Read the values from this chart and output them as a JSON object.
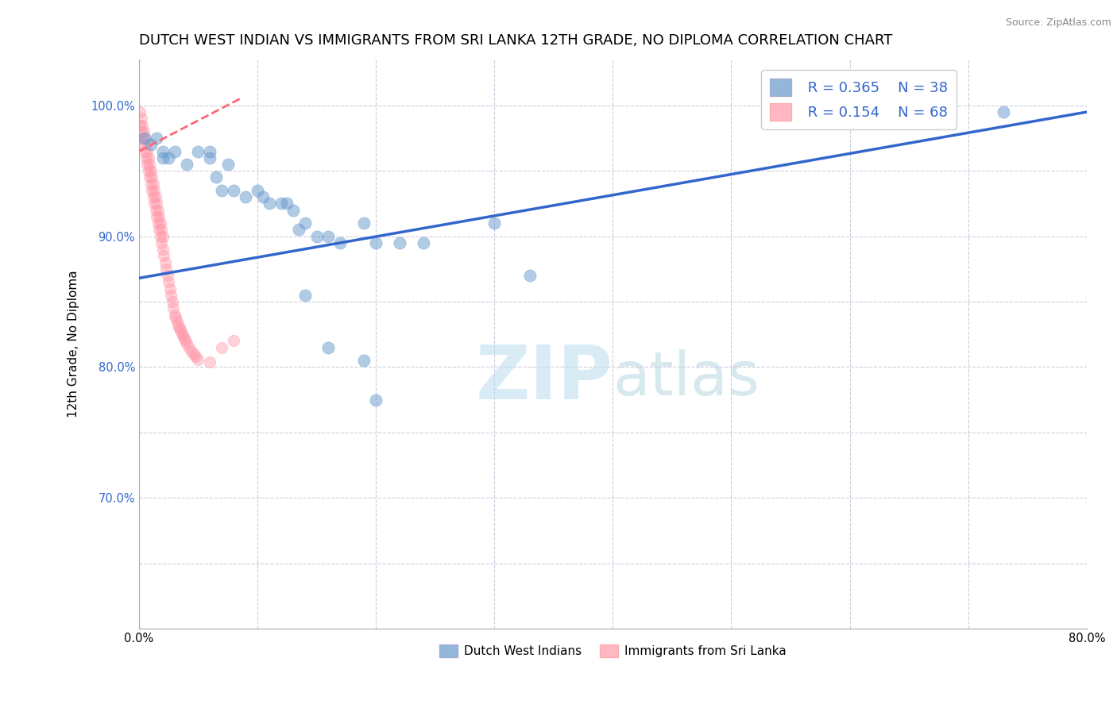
{
  "title": "DUTCH WEST INDIAN VS IMMIGRANTS FROM SRI LANKA 12TH GRADE, NO DIPLOMA CORRELATION CHART",
  "source_text": "Source: ZipAtlas.com",
  "ylabel": "12th Grade, No Diploma",
  "xlim": [
    0.0,
    0.8
  ],
  "ylim": [
    0.6,
    1.035
  ],
  "xticks": [
    0.0,
    0.1,
    0.2,
    0.3,
    0.4,
    0.5,
    0.6,
    0.7,
    0.8
  ],
  "xtick_labels": [
    "0.0%",
    "",
    "",
    "",
    "",
    "",
    "",
    "",
    "80.0%"
  ],
  "yticks": [
    0.6,
    0.65,
    0.7,
    0.75,
    0.8,
    0.85,
    0.9,
    0.95,
    1.0
  ],
  "ytick_labels": [
    "",
    "",
    "70.0%",
    "",
    "80.0%",
    "",
    "90.0%",
    "",
    "100.0%"
  ],
  "blue_color": "#6699CC",
  "pink_color": "#FF99AA",
  "blue_line_color": "#3366CC",
  "pink_line_color": "#FF6677",
  "legend_R1": "R = 0.365",
  "legend_N1": "N = 38",
  "legend_R2": "R = 0.154",
  "legend_N2": "N = 68",
  "watermark_zip": "ZIP",
  "watermark_atlas": "atlas",
  "watermark_color_zip": "#BBDDEE",
  "watermark_color_atlas": "#AACCDD",
  "blue_scatter_x": [
    0.005,
    0.01,
    0.015,
    0.02,
    0.02,
    0.025,
    0.03,
    0.04,
    0.05,
    0.06,
    0.06,
    0.065,
    0.07,
    0.075,
    0.08,
    0.09,
    0.1,
    0.105,
    0.11,
    0.12,
    0.125,
    0.13,
    0.135,
    0.14,
    0.15,
    0.16,
    0.17,
    0.19,
    0.2,
    0.22,
    0.14,
    0.24,
    0.3,
    0.33,
    0.16,
    0.19,
    0.73,
    0.2
  ],
  "blue_scatter_y": [
    0.975,
    0.97,
    0.975,
    0.96,
    0.965,
    0.96,
    0.965,
    0.955,
    0.965,
    0.965,
    0.96,
    0.945,
    0.935,
    0.955,
    0.935,
    0.93,
    0.935,
    0.93,
    0.925,
    0.925,
    0.925,
    0.92,
    0.905,
    0.91,
    0.9,
    0.9,
    0.895,
    0.91,
    0.895,
    0.895,
    0.855,
    0.895,
    0.91,
    0.87,
    0.815,
    0.805,
    0.995,
    0.775
  ],
  "pink_scatter_x": [
    0.001,
    0.001,
    0.002,
    0.002,
    0.003,
    0.003,
    0.004,
    0.004,
    0.005,
    0.005,
    0.006,
    0.006,
    0.007,
    0.007,
    0.008,
    0.008,
    0.009,
    0.009,
    0.01,
    0.01,
    0.011,
    0.011,
    0.012,
    0.012,
    0.013,
    0.013,
    0.014,
    0.014,
    0.015,
    0.015,
    0.016,
    0.016,
    0.017,
    0.017,
    0.018,
    0.018,
    0.019,
    0.019,
    0.02,
    0.02,
    0.021,
    0.022,
    0.023,
    0.024,
    0.025,
    0.026,
    0.027,
    0.028,
    0.029,
    0.03,
    0.031,
    0.032,
    0.033,
    0.034,
    0.035,
    0.036,
    0.037,
    0.038,
    0.039,
    0.04,
    0.042,
    0.044,
    0.046,
    0.048,
    0.05,
    0.06,
    0.07,
    0.08
  ],
  "pink_scatter_y": [
    0.995,
    0.985,
    0.99,
    0.98,
    0.985,
    0.975,
    0.98,
    0.97,
    0.975,
    0.965,
    0.97,
    0.96,
    0.965,
    0.955,
    0.96,
    0.95,
    0.955,
    0.945,
    0.95,
    0.94,
    0.945,
    0.935,
    0.94,
    0.93,
    0.935,
    0.925,
    0.93,
    0.92,
    0.925,
    0.915,
    0.92,
    0.91,
    0.915,
    0.905,
    0.91,
    0.9,
    0.905,
    0.895,
    0.9,
    0.89,
    0.885,
    0.88,
    0.875,
    0.87,
    0.865,
    0.86,
    0.855,
    0.85,
    0.845,
    0.84,
    0.838,
    0.835,
    0.832,
    0.83,
    0.828,
    0.826,
    0.824,
    0.822,
    0.82,
    0.818,
    0.815,
    0.812,
    0.81,
    0.808,
    0.806,
    0.804,
    0.815,
    0.82
  ],
  "blue_trend_x": [
    0.0,
    0.8
  ],
  "blue_trend_y": [
    0.868,
    0.995
  ],
  "pink_trend_x": [
    0.0,
    0.085
  ],
  "pink_trend_y": [
    0.965,
    1.005
  ],
  "background_color": "#FFFFFF",
  "grid_color": "#CCCCDD",
  "title_fontsize": 13,
  "axis_label_fontsize": 11,
  "tick_fontsize": 10.5,
  "legend_fontsize": 13
}
